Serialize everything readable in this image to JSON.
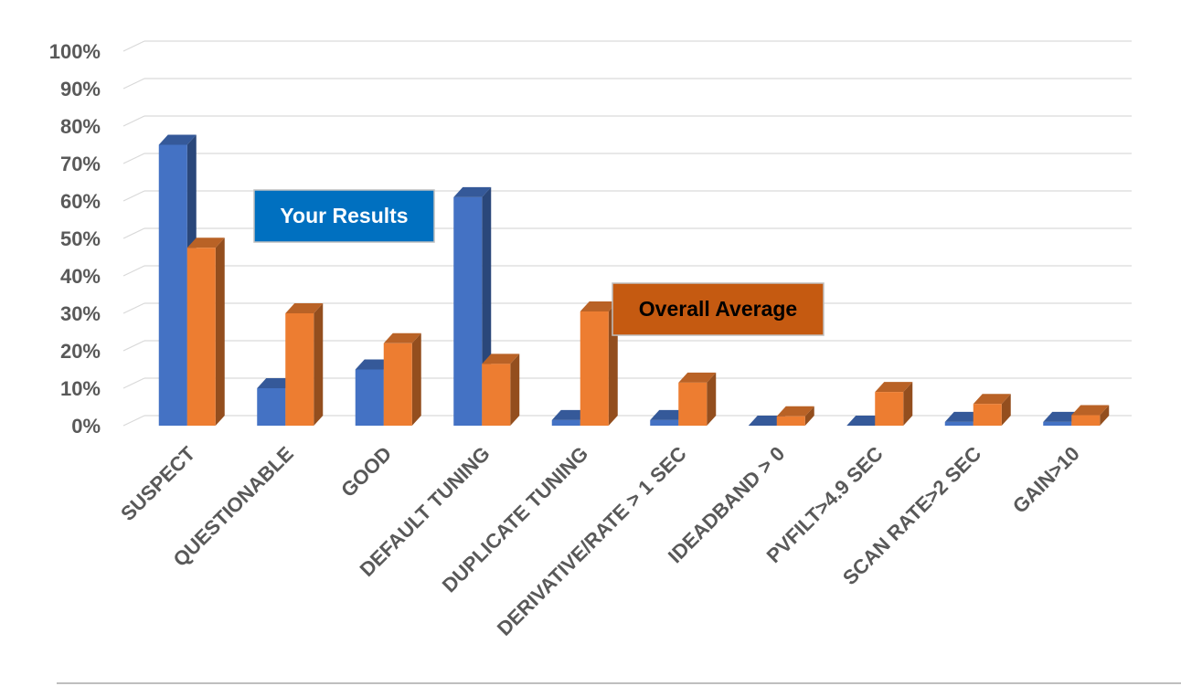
{
  "chart_data": {
    "type": "bar",
    "style": "3d-clustered-column",
    "categories": [
      "SUSPECT",
      "QUESTIONABLE",
      "GOOD",
      "DEFAULT TUNING",
      "DUPLICATE TUNING",
      "DERIVATIVE/RATE > 1 SEC",
      "IDEADBAND > 0",
      "PVFILT>4.9 SEC",
      "SCAN RATE>2 SEC",
      "GAIN>10"
    ],
    "series": [
      {
        "name": "Your Results",
        "color": "#4472C4",
        "values": [
          75,
          10,
          15,
          61,
          1.5,
          1.5,
          0,
          0,
          1,
          1
        ]
      },
      {
        "name": "Overall Average",
        "color": "#ED7D31",
        "values": [
          47.5,
          30,
          22,
          16.5,
          30.5,
          11.5,
          2.5,
          9,
          5.8,
          2.8
        ]
      }
    ],
    "y_ticks": [
      "0%",
      "10%",
      "20%",
      "30%",
      "40%",
      "50%",
      "60%",
      "70%",
      "80%",
      "90%",
      "100%"
    ],
    "ylim": [
      0,
      100
    ],
    "grid": true,
    "legend_boxes": [
      {
        "label": "Your Results",
        "fill": "#0070C0",
        "text_color": "#ffffff"
      },
      {
        "label": "Overall Average",
        "fill": "#C55A11",
        "text_color": "#000000"
      }
    ]
  }
}
